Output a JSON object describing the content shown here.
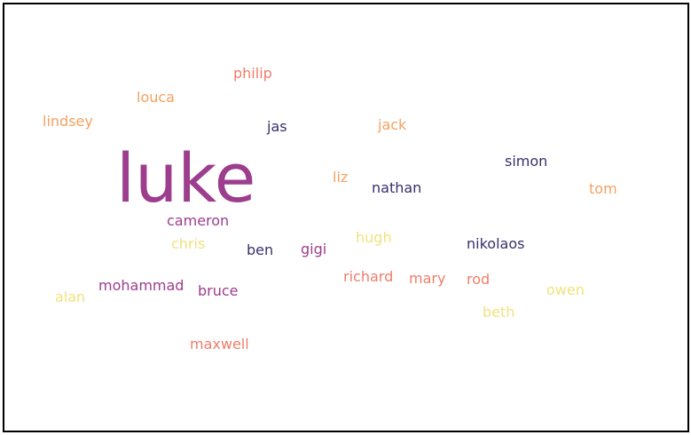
{
  "words": [
    {
      "text": "luke",
      "color": "#9c3d8e"
    },
    {
      "text": "philip",
      "color": "#ee7d6a"
    },
    {
      "text": "louca",
      "color": "#f4a160"
    },
    {
      "text": "lindsey",
      "color": "#f4a160"
    },
    {
      "text": "jas",
      "color": "#3a2f6b"
    },
    {
      "text": "jack",
      "color": "#f4a160"
    },
    {
      "text": "simon",
      "color": "#3a2f6b"
    },
    {
      "text": "liz",
      "color": "#f4a160"
    },
    {
      "text": "nathan",
      "color": "#3a2f6b"
    },
    {
      "text": "tom",
      "color": "#f4a160"
    },
    {
      "text": "cameron",
      "color": "#9c3d8e"
    },
    {
      "text": "chris",
      "color": "#f0e27e"
    },
    {
      "text": "ben",
      "color": "#3a2f6b"
    },
    {
      "text": "gigi",
      "color": "#9c3d8e"
    },
    {
      "text": "hugh",
      "color": "#f0e27e"
    },
    {
      "text": "nikolaos",
      "color": "#3a2f6b"
    },
    {
      "text": "richard",
      "color": "#ee7d6a"
    },
    {
      "text": "mary",
      "color": "#ee7d6a"
    },
    {
      "text": "rod",
      "color": "#ee7d6a"
    },
    {
      "text": "owen",
      "color": "#f0e27e"
    },
    {
      "text": "alan",
      "color": "#f0e27e"
    },
    {
      "text": "mohammad",
      "color": "#9c3d8e"
    },
    {
      "text": "bruce",
      "color": "#9c3d8e"
    },
    {
      "text": "beth",
      "color": "#f0e27e"
    },
    {
      "text": "maxwell",
      "color": "#ee7d6a"
    }
  ]
}
